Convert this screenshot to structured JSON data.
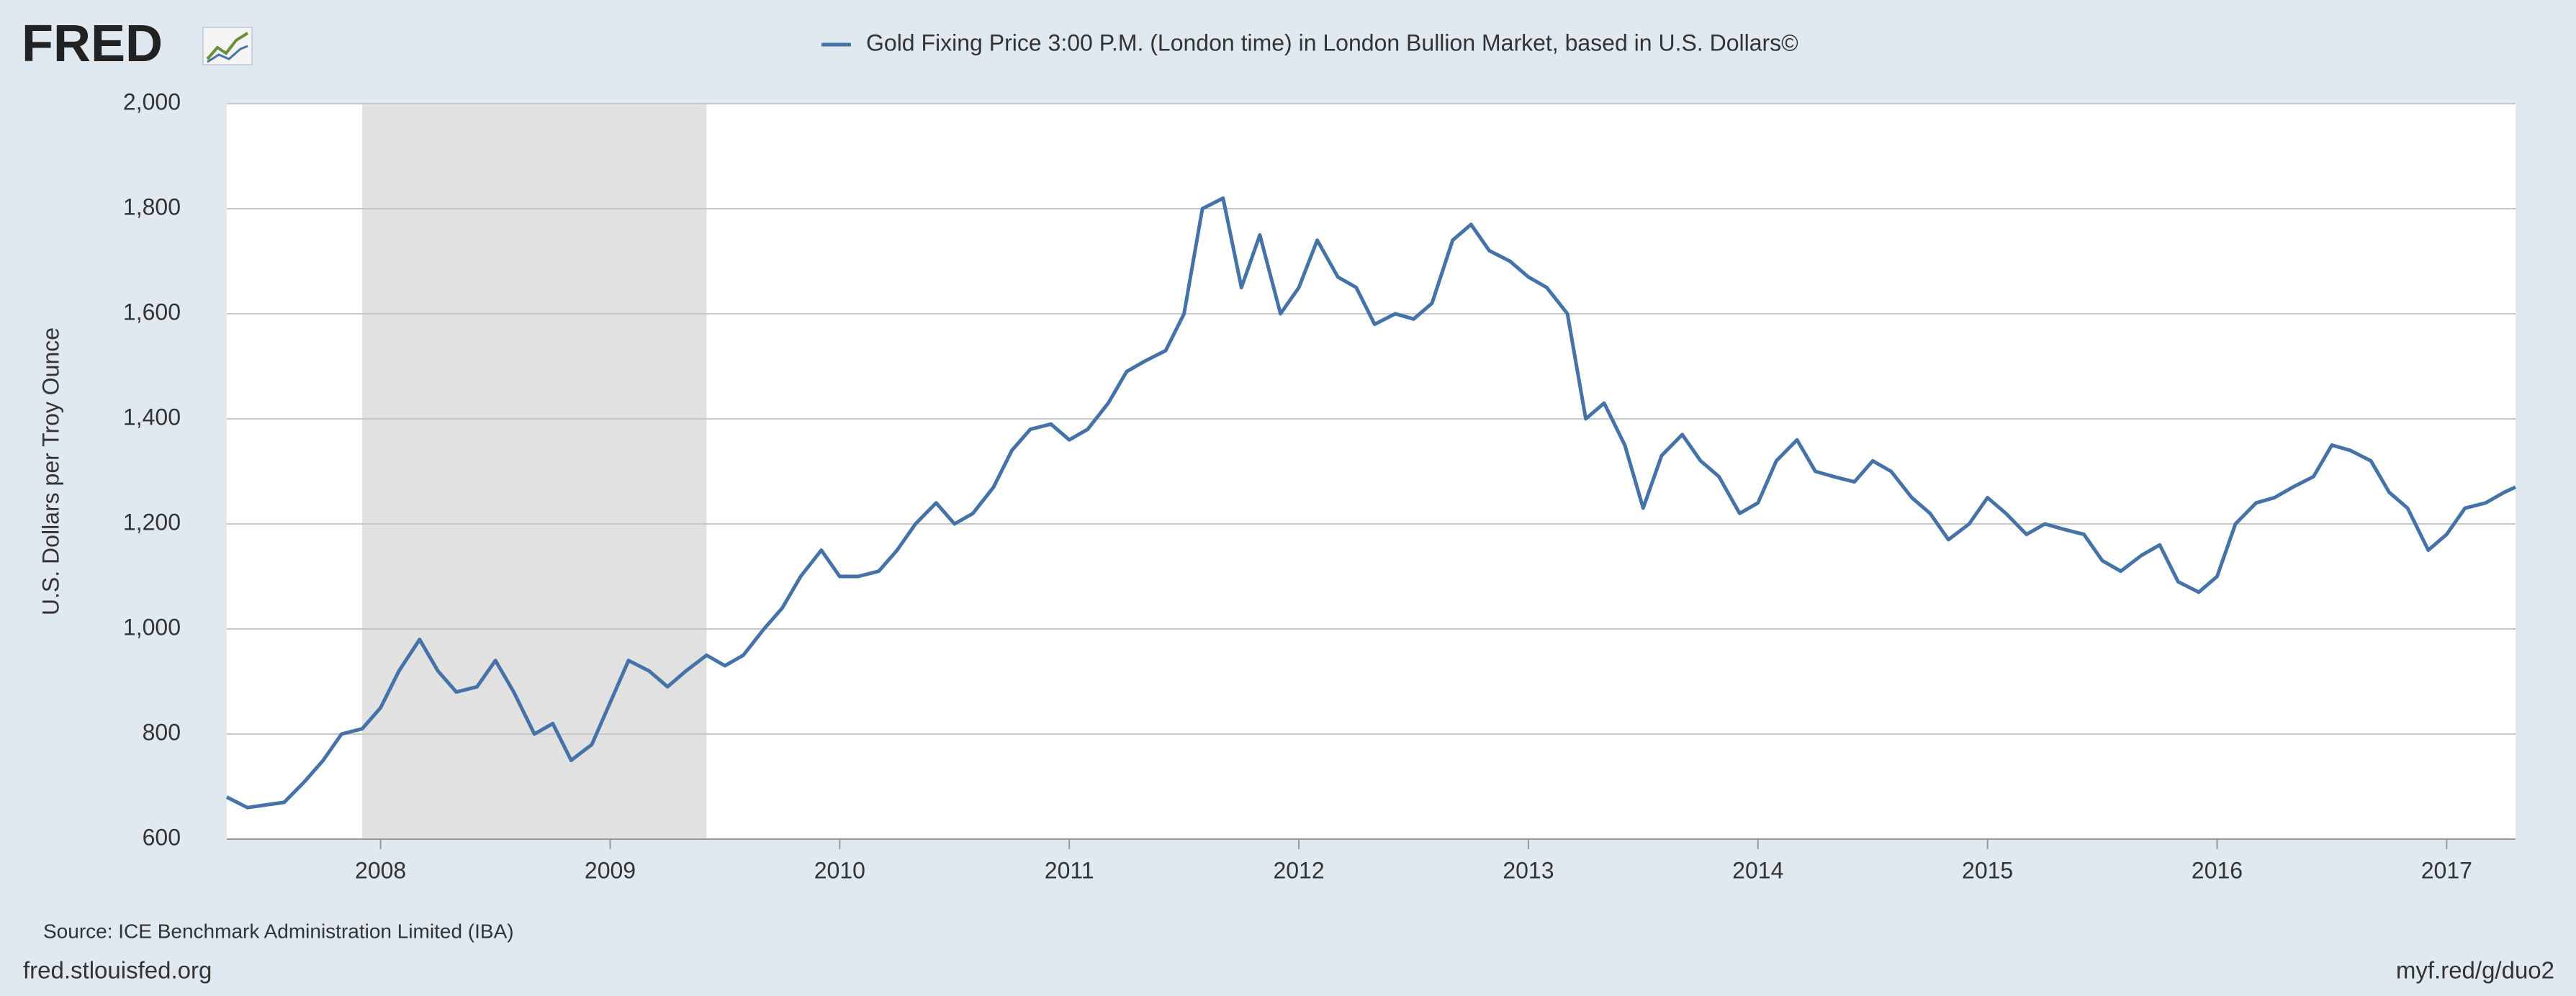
{
  "logo": "FRED",
  "chart_data": {
    "type": "line",
    "series": [
      {
        "name": "Gold Fixing Price 3:00 P.M. (London time) in London Bullion Market, based in U.S. Dollars©",
        "color": "#4572a7",
        "values": [
          680,
          660,
          665,
          670,
          710,
          750,
          800,
          810,
          850,
          920,
          980,
          920,
          880,
          890,
          940,
          880,
          800,
          820,
          750,
          780,
          860,
          940,
          920,
          890,
          920,
          950,
          930,
          950,
          1000,
          1040,
          1100,
          1150,
          1100,
          1100,
          1110,
          1150,
          1200,
          1240,
          1200,
          1220,
          1270,
          1340,
          1380,
          1390,
          1360,
          1380,
          1430,
          1490,
          1510,
          1530,
          1600,
          1800,
          1820,
          1650,
          1750,
          1600,
          1650,
          1740,
          1670,
          1650,
          1580,
          1600,
          1590,
          1620,
          1740,
          1770,
          1720,
          1700,
          1670,
          1650,
          1600,
          1400,
          1430,
          1350,
          1230,
          1330,
          1370,
          1320,
          1290,
          1220,
          1240,
          1320,
          1360,
          1300,
          1290,
          1280,
          1320,
          1300,
          1250,
          1220,
          1170,
          1200,
          1250,
          1220,
          1180,
          1200,
          1190,
          1180,
          1130,
          1110,
          1140,
          1160,
          1090,
          1070,
          1100,
          1200,
          1240,
          1250,
          1270,
          1290,
          1350,
          1340,
          1320,
          1260,
          1230,
          1150,
          1180,
          1230,
          1240,
          1260,
          1270
        ]
      }
    ],
    "x": [
      2007.33,
      2007.42,
      2007.5,
      2007.58,
      2007.67,
      2007.75,
      2007.83,
      2007.92,
      2008.0,
      2008.08,
      2008.17,
      2008.25,
      2008.33,
      2008.42,
      2008.5,
      2008.58,
      2008.67,
      2008.75,
      2008.83,
      2008.92,
      2009.0,
      2009.08,
      2009.17,
      2009.25,
      2009.33,
      2009.42,
      2009.5,
      2009.58,
      2009.67,
      2009.75,
      2009.83,
      2009.92,
      2010.0,
      2010.08,
      2010.17,
      2010.25,
      2010.33,
      2010.42,
      2010.5,
      2010.58,
      2010.67,
      2010.75,
      2010.83,
      2010.92,
      2011.0,
      2011.08,
      2011.17,
      2011.25,
      2011.33,
      2011.42,
      2011.5,
      2011.58,
      2011.67,
      2011.75,
      2011.83,
      2011.92,
      2012.0,
      2012.08,
      2012.17,
      2012.25,
      2012.33,
      2012.42,
      2012.5,
      2012.58,
      2012.67,
      2012.75,
      2012.83,
      2012.92,
      2013.0,
      2013.08,
      2013.17,
      2013.25,
      2013.33,
      2013.42,
      2013.5,
      2013.58,
      2013.67,
      2013.75,
      2013.83,
      2013.92,
      2014.0,
      2014.08,
      2014.17,
      2014.25,
      2014.33,
      2014.42,
      2014.5,
      2014.58,
      2014.67,
      2014.75,
      2014.83,
      2014.92,
      2015.0,
      2015.08,
      2015.17,
      2015.25,
      2015.33,
      2015.42,
      2015.5,
      2015.58,
      2015.67,
      2015.75,
      2015.83,
      2015.92,
      2016.0,
      2016.08,
      2016.17,
      2016.25,
      2016.33,
      2016.42,
      2016.5,
      2016.58,
      2016.67,
      2016.75,
      2016.83,
      2016.92,
      2017.0,
      2017.08,
      2017.17,
      2017.25,
      2017.3
    ],
    "xlim": [
      2007.33,
      2017.3
    ],
    "xticks": [
      2008,
      2009,
      2010,
      2011,
      2012,
      2013,
      2014,
      2015,
      2016,
      2017
    ],
    "ylim": [
      600,
      2000
    ],
    "yticks": [
      600,
      {
        "value": 800,
        "label": "800"
      },
      {
        "value": 1000,
        "label": "1,000"
      },
      {
        "value": 1200,
        "label": "1,200"
      },
      {
        "value": 1400,
        "label": "1,400"
      },
      {
        "value": 1600,
        "label": "1,600"
      },
      {
        "value": 1800,
        "label": "1,800"
      },
      {
        "value": 2000,
        "label": "2,000"
      }
    ],
    "ylabel": "U.S. Dollars per Troy Ounce",
    "shaded_ranges": [
      [
        2007.92,
        2009.42
      ]
    ],
    "grid": true,
    "source": "Source: ICE Benchmark Administration Limited (IBA)",
    "footer_left": "fred.stlouisfed.org",
    "footer_right": "myf.red/g/duo2"
  }
}
